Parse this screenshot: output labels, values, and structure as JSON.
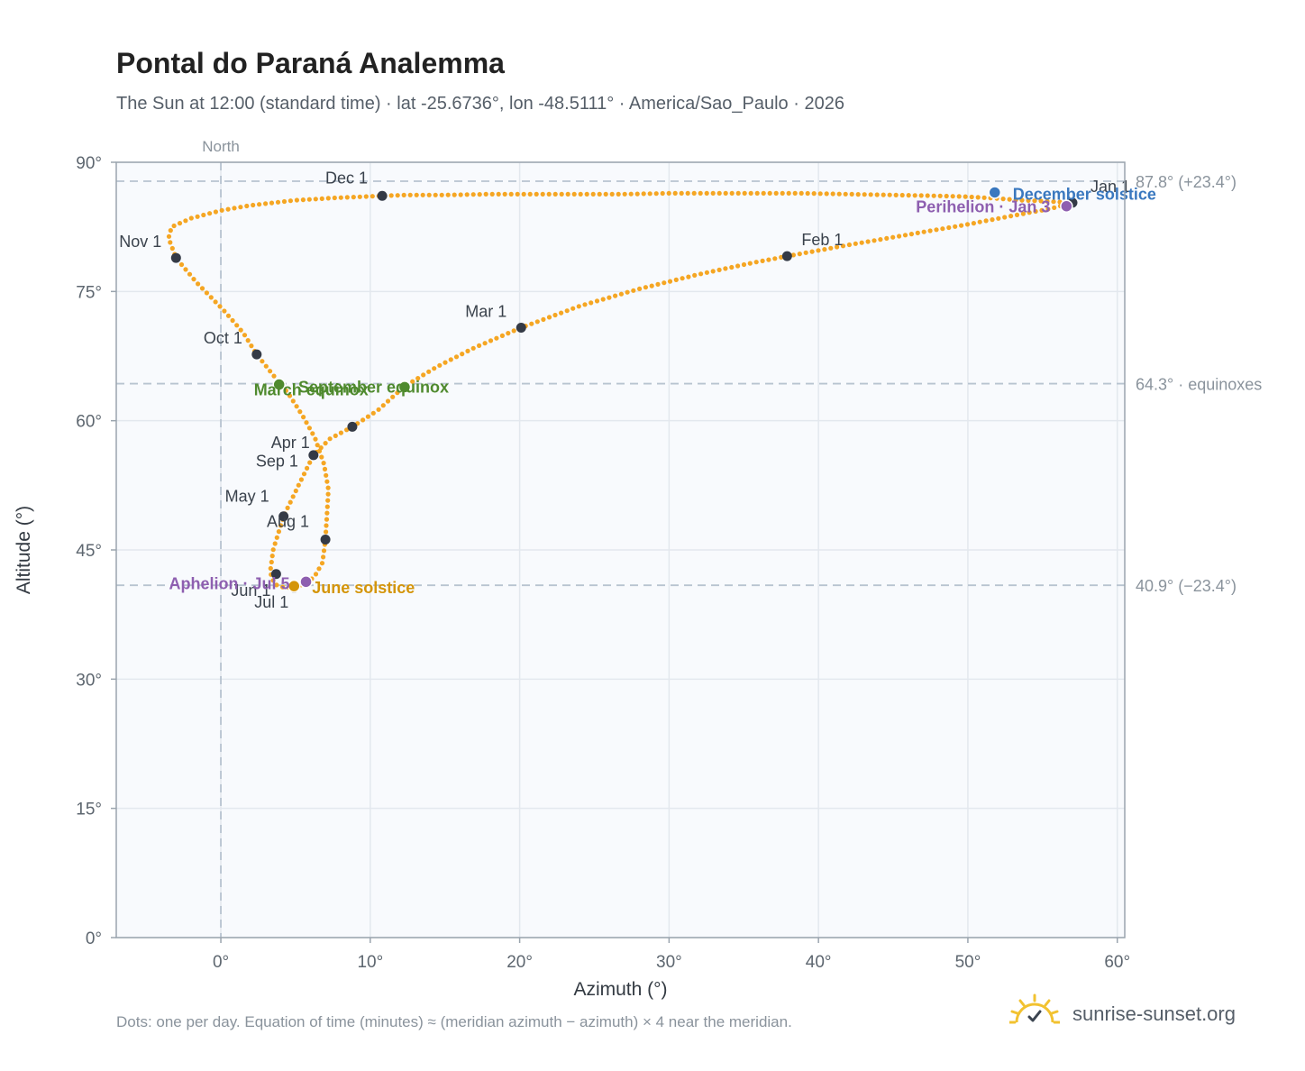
{
  "header": {
    "title": "Pontal do Paraná Analemma",
    "subtitle": "The Sun at 12:00 (standard time) · lat -25.6736°, lon -48.5111° · America/Sao_Paulo · 2026"
  },
  "footer": {
    "note": "Dots: one per day. Equation of time (minutes) ≈ (meridian azimuth − azimuth) × 4 near the meridian.",
    "brand": "sunrise-sunset.org"
  },
  "colors": {
    "path": "#f5a623",
    "month_dot": "#343a46",
    "equinox": "#4f8a2e",
    "solstice_june": "#d4950a",
    "solstice_december": "#3a78bf",
    "apsis": "#8e5fb0",
    "grid": "#e3e8ee",
    "plot_bg": "#f8fafd",
    "axis": "#9aa4ae",
    "ref_line": "#b8c4d0"
  },
  "chart_data": {
    "type": "scatter",
    "xlabel": "Azimuth (°)",
    "ylabel": "Altitude (°)",
    "xlim": [
      -7,
      60.5
    ],
    "ylim": [
      0,
      90
    ],
    "x_ticks": [
      "0°",
      "10°",
      "20°",
      "30°",
      "40°",
      "50°",
      "60°"
    ],
    "x_tick_values": [
      0,
      10,
      20,
      30,
      40,
      50,
      60
    ],
    "y_ticks": [
      "0°",
      "15°",
      "30°",
      "45°",
      "60°",
      "75°",
      "90°"
    ],
    "y_tick_values": [
      0,
      15,
      30,
      45,
      60,
      75,
      90
    ],
    "grid": true,
    "north_line": {
      "x": 0,
      "label": "North"
    },
    "reference_lines": [
      {
        "y": 87.8,
        "label": "87.8° (+23.4°)"
      },
      {
        "y": 64.3,
        "label": "64.3° · equinoxes"
      },
      {
        "y": 40.9,
        "label": "40.9° (−23.4°)"
      }
    ],
    "path_points": [
      [
        57.0,
        85.3
      ],
      [
        56.0,
        85.4
      ],
      [
        55.0,
        85.5
      ],
      [
        53.5,
        85.6
      ],
      [
        52.0,
        85.8
      ],
      [
        50.0,
        86.0
      ],
      [
        48.0,
        86.1
      ],
      [
        45.0,
        86.2
      ],
      [
        42.0,
        86.3
      ],
      [
        39.0,
        86.4
      ],
      [
        36.0,
        86.4
      ],
      [
        33.0,
        86.4
      ],
      [
        30.0,
        86.4
      ],
      [
        27.0,
        86.3
      ],
      [
        24.0,
        86.3
      ],
      [
        21.0,
        86.3
      ],
      [
        18.0,
        86.3
      ],
      [
        15.0,
        86.2
      ],
      [
        12.5,
        86.2
      ],
      [
        10.8,
        86.1
      ],
      [
        8.0,
        85.9
      ],
      [
        5.0,
        85.6
      ],
      [
        2.0,
        85.0
      ],
      [
        0.0,
        84.4
      ],
      [
        -2.0,
        83.5
      ],
      [
        -3.3,
        82.5
      ],
      [
        -3.5,
        81.2
      ],
      [
        -3.0,
        78.9
      ],
      [
        -1.6,
        76.0
      ],
      [
        0.2,
        72.8
      ],
      [
        1.5,
        70.2
      ],
      [
        2.4,
        67.7
      ],
      [
        3.5,
        65.3
      ],
      [
        4.5,
        63.2
      ],
      [
        5.5,
        60.5
      ],
      [
        6.3,
        58.0
      ],
      [
        6.9,
        55.0
      ],
      [
        7.2,
        52.0
      ],
      [
        7.1,
        49.0
      ],
      [
        7.0,
        46.2
      ],
      [
        6.8,
        43.5
      ],
      [
        6.3,
        42.0
      ],
      [
        5.8,
        41.2
      ],
      [
        5.0,
        40.7
      ],
      [
        4.3,
        40.6
      ],
      [
        3.6,
        41.0
      ],
      [
        3.3,
        42.4
      ],
      [
        3.5,
        45.0
      ],
      [
        4.2,
        48.9
      ],
      [
        5.2,
        52.5
      ],
      [
        6.2,
        56.0
      ],
      [
        7.3,
        57.9
      ],
      [
        8.8,
        59.3
      ],
      [
        10.5,
        61.2
      ],
      [
        12.3,
        64.0
      ],
      [
        14.5,
        66.3
      ],
      [
        17.0,
        68.5
      ],
      [
        20.1,
        70.8
      ],
      [
        24.0,
        73.3
      ],
      [
        28.0,
        75.3
      ],
      [
        32.0,
        77.0
      ],
      [
        35.5,
        78.3
      ],
      [
        37.9,
        79.1
      ],
      [
        42.0,
        80.4
      ],
      [
        46.0,
        81.6
      ],
      [
        50.0,
        82.8
      ],
      [
        53.0,
        83.8
      ],
      [
        55.5,
        84.6
      ],
      [
        57.0,
        85.3
      ]
    ],
    "month_markers": [
      {
        "label": "Jan 1",
        "x": 57.0,
        "y": 85.3
      },
      {
        "label": "Feb 1",
        "x": 37.9,
        "y": 79.1
      },
      {
        "label": "Mar 1",
        "x": 20.1,
        "y": 70.8
      },
      {
        "label": "Apr 1",
        "x": 6.2,
        "y": 56.0
      },
      {
        "label": "May 1",
        "x": 4.2,
        "y": 48.9
      },
      {
        "label": "Jun 1",
        "x": 3.7,
        "y": 42.2
      },
      {
        "label": "Jul 1",
        "x": 4.9,
        "y": 40.6
      },
      {
        "label": "Aug 1",
        "x": 7.0,
        "y": 46.2
      },
      {
        "label": "Sep 1",
        "x": 8.8,
        "y": 59.3
      },
      {
        "label": "Oct 1",
        "x": 2.4,
        "y": 67.7
      },
      {
        "label": "Nov 1",
        "x": -3.0,
        "y": 78.9
      },
      {
        "label": "Dec 1",
        "x": 10.8,
        "y": 86.1
      }
    ],
    "events": [
      {
        "label": "March equinox",
        "x": 3.9,
        "y": 64.2,
        "kind": "equinox"
      },
      {
        "label": "September equinox",
        "x": 12.3,
        "y": 63.9,
        "kind": "equinox"
      },
      {
        "label": "June solstice",
        "x": 4.9,
        "y": 40.8,
        "kind": "solstice_june"
      },
      {
        "label": "December solstice",
        "x": 51.8,
        "y": 86.5,
        "kind": "solstice_december"
      },
      {
        "label": "Perihelion · Jan 3",
        "x": 56.6,
        "y": 84.9,
        "kind": "apsis"
      },
      {
        "label": "Aphelion · Jul 5",
        "x": 5.7,
        "y": 41.3,
        "kind": "apsis"
      }
    ]
  }
}
